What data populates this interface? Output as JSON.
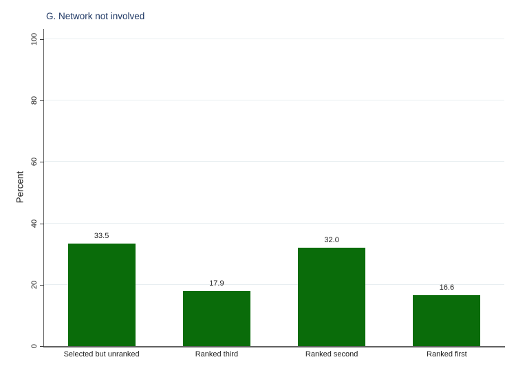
{
  "chart_data": {
    "type": "bar",
    "title": "G. Network not involved",
    "xlabel": "",
    "ylabel": "Percent",
    "categories": [
      "Selected but unranked",
      "Ranked third",
      "Ranked second",
      "Ranked first"
    ],
    "values": [
      33.5,
      17.9,
      32.0,
      16.6
    ],
    "value_labels": [
      "33.5",
      "17.9",
      "32.0",
      "16.6"
    ],
    "ylim": [
      0,
      100
    ],
    "yticks": [
      0,
      20,
      40,
      60,
      80,
      100
    ],
    "grid": true,
    "legend_position": "none",
    "colors": {
      "bar": "#0a6c0a",
      "title": "#1f3864",
      "text": "#1c1c1c",
      "axis_line": "#606060",
      "tick_mark": "#3a3a3a",
      "gridline": "#e8eef1",
      "background": "#ffffff"
    }
  }
}
